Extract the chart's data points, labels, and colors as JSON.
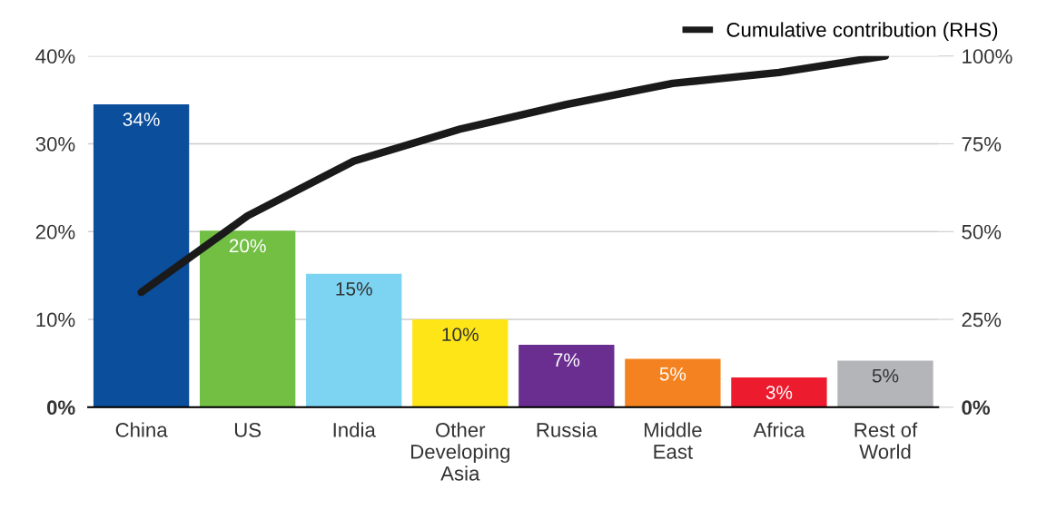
{
  "chart_data": {
    "type": "bar",
    "categories": [
      "China",
      "US",
      "India",
      "Other\nDeveloping\nAsia",
      "Russia",
      "Middle\nEast",
      "Africa",
      "Rest of\nWorld"
    ],
    "series": [
      {
        "colors": [
          "#0b4e9c",
          "#72bf44",
          "#7dd3f2",
          "#fde518",
          "#6a2e91",
          "#f58220",
          "#ec1c2e",
          "#b4b5b8"
        ],
        "values": [
          34.5,
          20.1,
          15.2,
          10.0,
          7.1,
          5.5,
          3.4,
          5.3
        ],
        "value_labels": [
          "34%",
          "20%",
          "15%",
          "10%",
          "7%",
          "5%",
          "3%",
          "5%"
        ]
      },
      {
        "type": "line",
        "name": "Cumulative contribution (RHS)",
        "color": "#1a1a1a",
        "axis": "y2",
        "values": [
          32.7,
          54.5,
          70.1,
          79.2,
          86.2,
          92.2,
          95.3,
          100
        ]
      }
    ],
    "ylim": [
      0,
      40
    ],
    "yticks": [
      {
        "value": 0,
        "label": "0%"
      },
      {
        "value": 10,
        "label": "10%"
      },
      {
        "value": 20,
        "label": "20%"
      },
      {
        "value": 30,
        "label": "30%"
      },
      {
        "value": 40,
        "label": "40%"
      }
    ],
    "y2lim": [
      0,
      100
    ],
    "y2ticks": [
      {
        "value": 0,
        "label": "0%"
      },
      {
        "value": 25,
        "label": "25%"
      },
      {
        "value": 50,
        "label": "50%"
      },
      {
        "value": 75,
        "label": "75%"
      },
      {
        "value": 100,
        "label": "100%"
      }
    ],
    "grid": "y",
    "legend": "top right",
    "line_style": "solid",
    "marker": "none"
  }
}
